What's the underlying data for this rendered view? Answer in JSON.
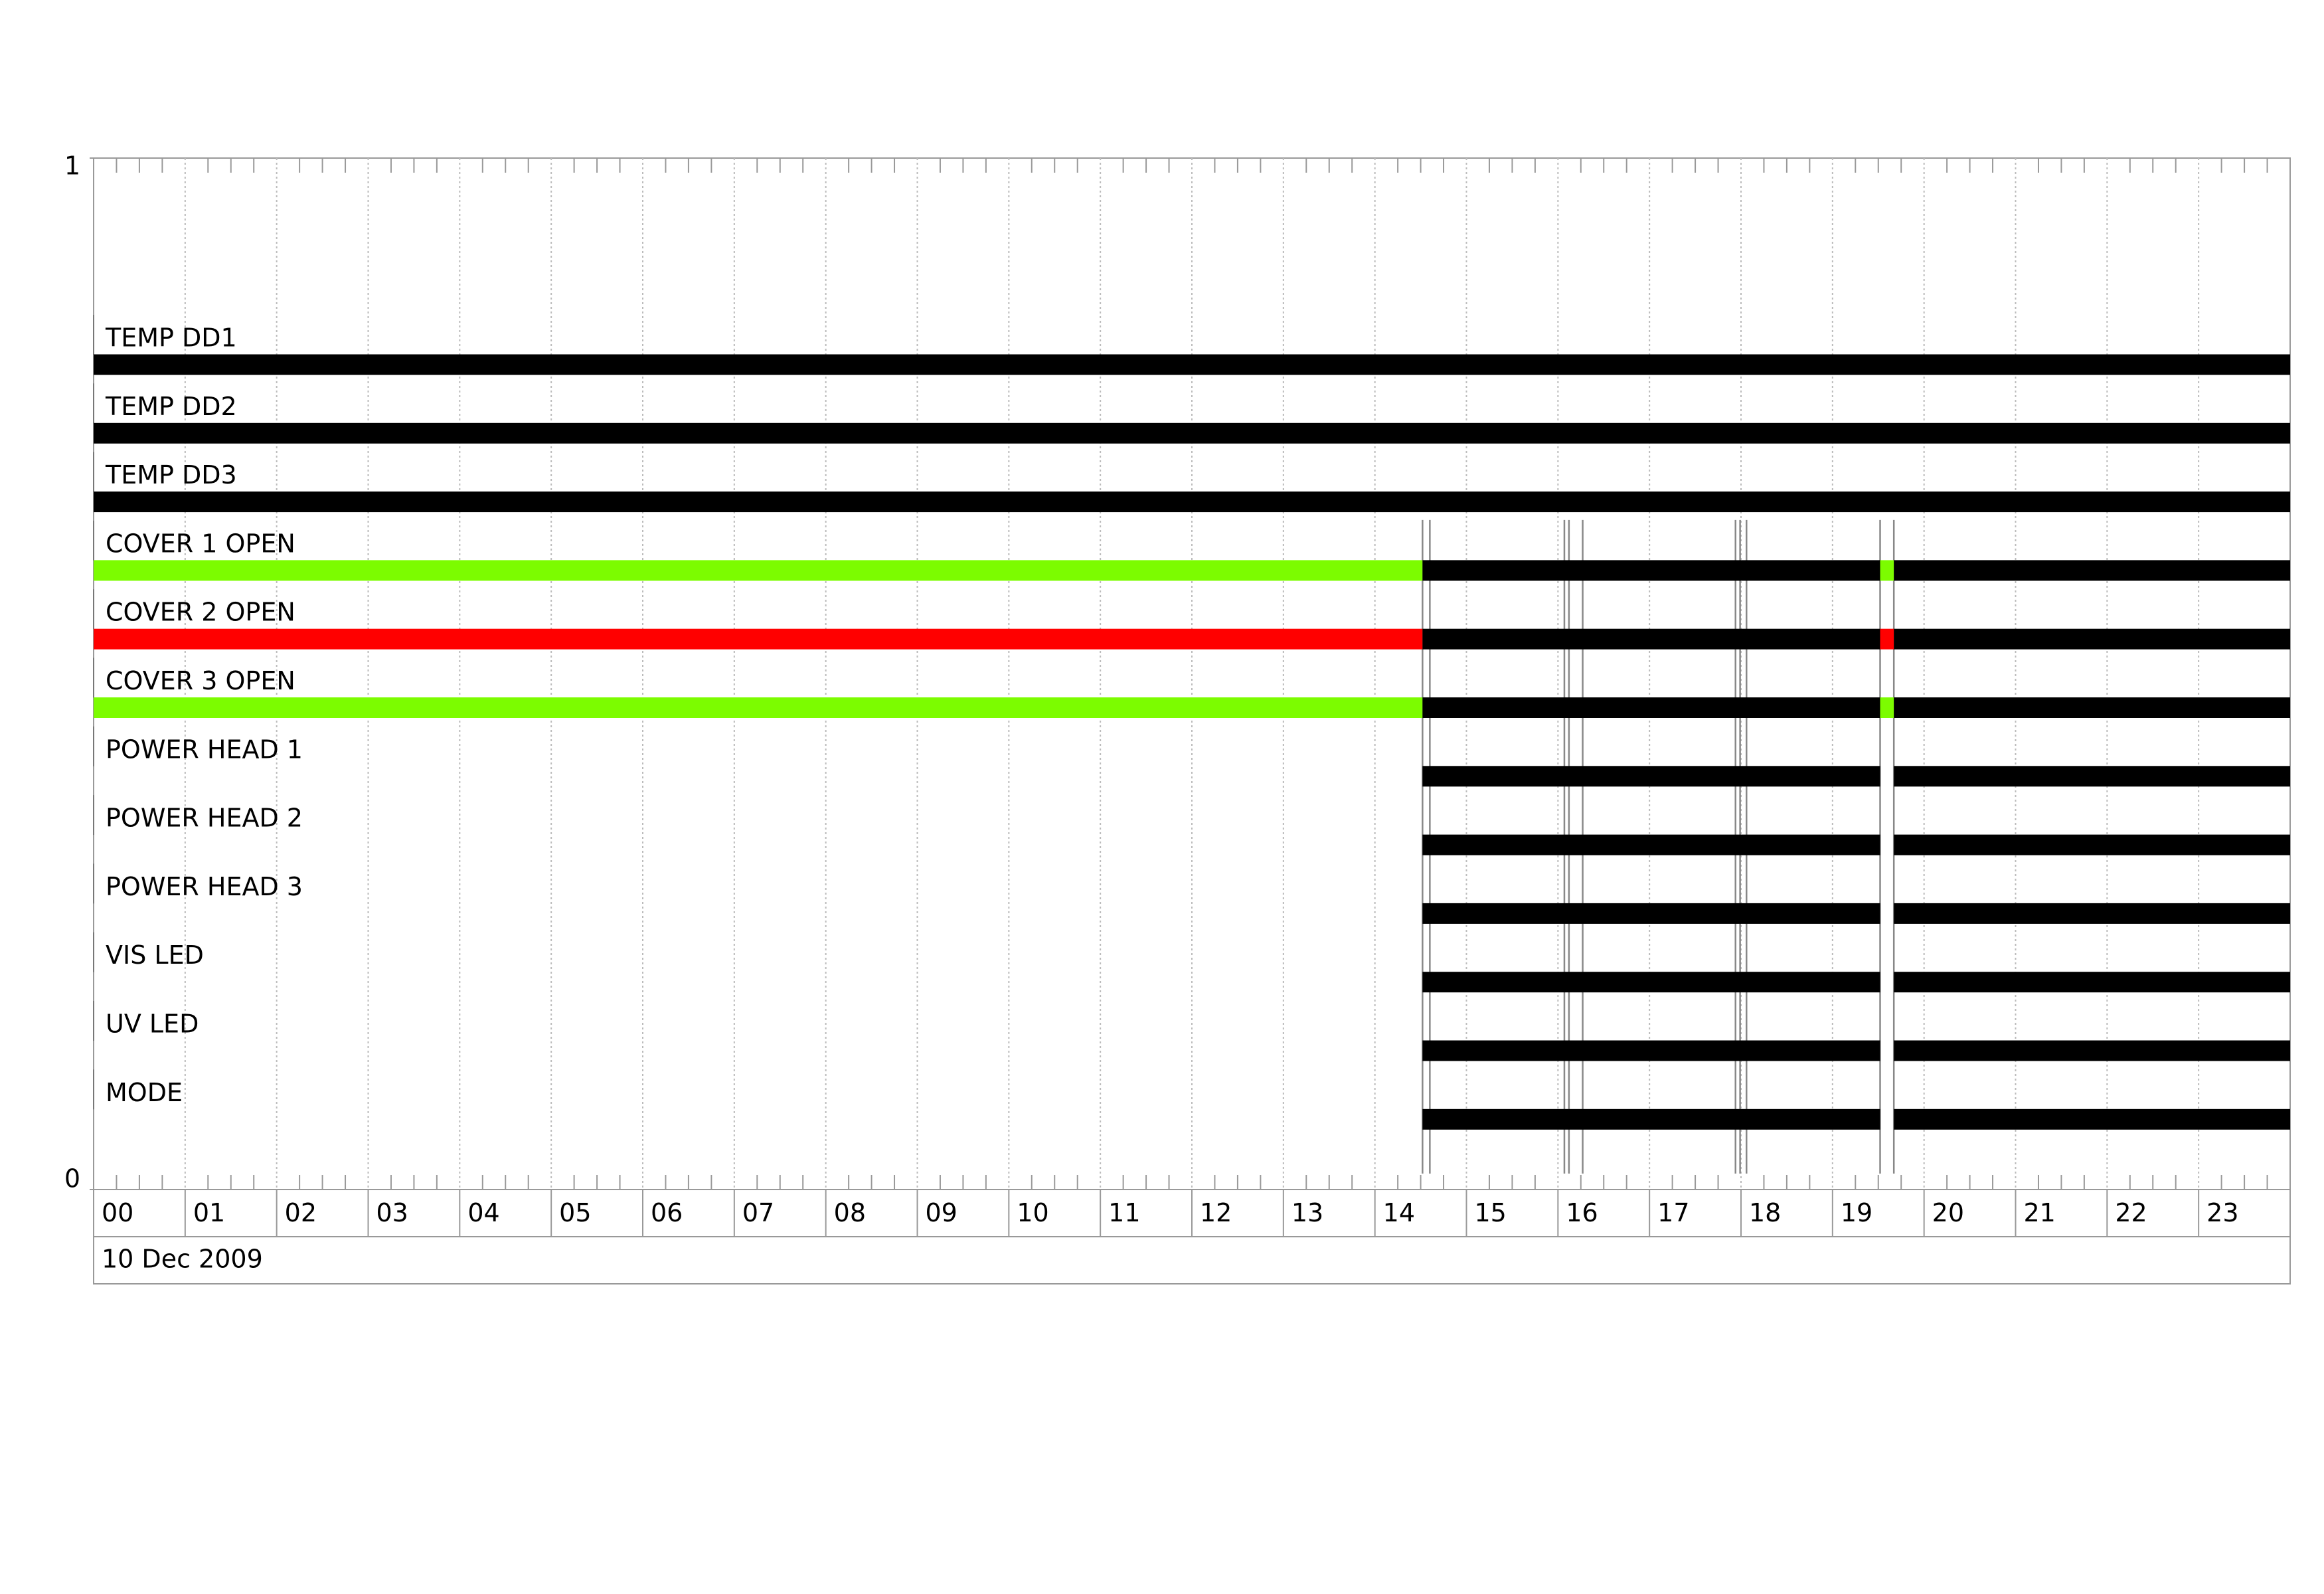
{
  "chart_data": {
    "type": "timeline",
    "rows": [
      {
        "label": "TEMP DD1",
        "segments": [
          {
            "start": 0,
            "end": 24,
            "color": "#000000"
          }
        ]
      },
      {
        "label": "TEMP DD2",
        "segments": [
          {
            "start": 0,
            "end": 24,
            "color": "#000000"
          }
        ]
      },
      {
        "label": "TEMP DD3",
        "segments": [
          {
            "start": 0,
            "end": 24,
            "color": "#000000"
          }
        ]
      },
      {
        "label": "COVER 1 OPEN",
        "segments": [
          {
            "start": 0,
            "end": 14.52,
            "color": "#7cfc00"
          },
          {
            "start": 14.52,
            "end": 19.52,
            "color": "#000000"
          },
          {
            "start": 19.52,
            "end": 19.67,
            "color": "#7cfc00"
          },
          {
            "start": 19.67,
            "end": 24,
            "color": "#000000"
          }
        ]
      },
      {
        "label": "COVER 2 OPEN",
        "segments": [
          {
            "start": 0,
            "end": 14.52,
            "color": "#ff0000"
          },
          {
            "start": 14.52,
            "end": 19.52,
            "color": "#000000"
          },
          {
            "start": 19.52,
            "end": 19.67,
            "color": "#ff0000"
          },
          {
            "start": 19.67,
            "end": 24,
            "color": "#000000"
          }
        ]
      },
      {
        "label": "COVER 3 OPEN",
        "segments": [
          {
            "start": 0,
            "end": 14.52,
            "color": "#7cfc00"
          },
          {
            "start": 14.52,
            "end": 19.52,
            "color": "#000000"
          },
          {
            "start": 19.52,
            "end": 19.67,
            "color": "#7cfc00"
          },
          {
            "start": 19.67,
            "end": 24,
            "color": "#000000"
          }
        ]
      },
      {
        "label": "POWER HEAD 1",
        "segments": [
          {
            "start": 14.52,
            "end": 19.52,
            "color": "#000000"
          },
          {
            "start": 19.67,
            "end": 24,
            "color": "#000000"
          }
        ]
      },
      {
        "label": "POWER HEAD 2",
        "segments": [
          {
            "start": 14.52,
            "end": 19.52,
            "color": "#000000"
          },
          {
            "start": 19.67,
            "end": 24,
            "color": "#000000"
          }
        ]
      },
      {
        "label": "POWER HEAD 3",
        "segments": [
          {
            "start": 14.52,
            "end": 19.52,
            "color": "#000000"
          },
          {
            "start": 19.67,
            "end": 24,
            "color": "#000000"
          }
        ]
      },
      {
        "label": "VIS LED",
        "segments": [
          {
            "start": 14.52,
            "end": 19.52,
            "color": "#000000"
          },
          {
            "start": 19.67,
            "end": 24,
            "color": "#000000"
          }
        ]
      },
      {
        "label": "UV LED",
        "segments": [
          {
            "start": 14.52,
            "end": 19.52,
            "color": "#000000"
          },
          {
            "start": 19.67,
            "end": 24,
            "color": "#000000"
          }
        ]
      },
      {
        "label": "MODE",
        "segments": [
          {
            "start": 14.52,
            "end": 19.52,
            "color": "#000000"
          },
          {
            "start": 19.67,
            "end": 24,
            "color": "#000000"
          }
        ]
      }
    ],
    "event_markers": [
      14.52,
      14.6,
      16.07,
      16.12,
      16.27,
      17.94,
      17.99,
      18.06,
      19.52,
      19.67
    ],
    "xlim": [
      0,
      24
    ],
    "xticks": [
      {
        "value": 0,
        "label": "00"
      },
      {
        "value": 1,
        "label": "01"
      },
      {
        "value": 2,
        "label": "02"
      },
      {
        "value": 3,
        "label": "03"
      },
      {
        "value": 4,
        "label": "04"
      },
      {
        "value": 5,
        "label": "05"
      },
      {
        "value": 6,
        "label": "06"
      },
      {
        "value": 7,
        "label": "07"
      },
      {
        "value": 8,
        "label": "08"
      },
      {
        "value": 9,
        "label": "09"
      },
      {
        "value": 10,
        "label": "10"
      },
      {
        "value": 11,
        "label": "11"
      },
      {
        "value": 12,
        "label": "12"
      },
      {
        "value": 13,
        "label": "13"
      },
      {
        "value": 14,
        "label": "14"
      },
      {
        "value": 15,
        "label": "15"
      },
      {
        "value": 16,
        "label": "16"
      },
      {
        "value": 17,
        "label": "17"
      },
      {
        "value": 18,
        "label": "18"
      },
      {
        "value": 19,
        "label": "19"
      },
      {
        "value": 20,
        "label": "20"
      },
      {
        "value": 21,
        "label": "21"
      },
      {
        "value": 22,
        "label": "22"
      },
      {
        "value": 23,
        "label": "23"
      }
    ],
    "xlabel": "10 Dec 2009",
    "ylim": [
      0,
      1
    ],
    "yticks": [
      0,
      1
    ],
    "grid": true
  }
}
